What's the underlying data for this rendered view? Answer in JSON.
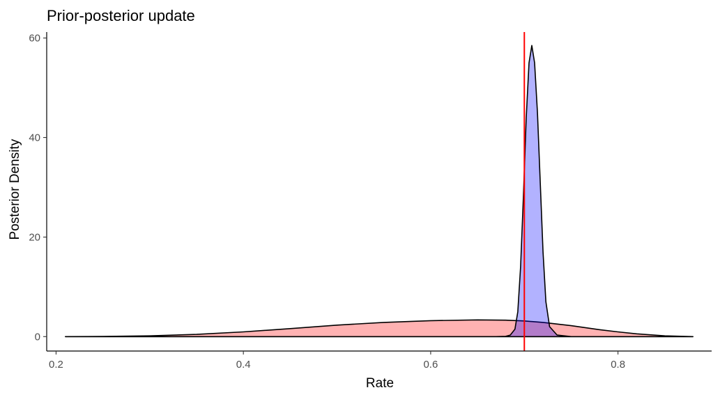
{
  "chart_data": {
    "type": "area",
    "title": "Prior-posterior update",
    "xlabel": "Rate",
    "ylabel": "Posterior Density",
    "xlim": [
      0.19,
      0.9
    ],
    "ylim": [
      -2.9,
      61.2
    ],
    "xticks": [
      0.2,
      0.4,
      0.6,
      0.8
    ],
    "xtick_labels": [
      "0.2",
      "0.4",
      "0.6",
      "0.8"
    ],
    "yticks": [
      0,
      20,
      40,
      60
    ],
    "ytick_labels": [
      "0",
      "20",
      "40",
      "60"
    ],
    "grid": false,
    "reference_line": {
      "x": 0.7,
      "color": "#ff0000"
    },
    "series": [
      {
        "fill": "#ff0000",
        "fill_opacity": 0.3,
        "x": [
          0.21,
          0.25,
          0.3,
          0.35,
          0.4,
          0.45,
          0.5,
          0.55,
          0.6,
          0.65,
          0.68,
          0.7,
          0.72,
          0.75,
          0.78,
          0.8,
          0.82,
          0.85,
          0.88
        ],
        "values": [
          0.0,
          0.03,
          0.15,
          0.45,
          0.95,
          1.6,
          2.3,
          2.85,
          3.2,
          3.35,
          3.3,
          3.15,
          2.85,
          2.2,
          1.4,
          0.95,
          0.55,
          0.15,
          0.0
        ]
      },
      {
        "fill": "#0000ff",
        "fill_opacity": 0.3,
        "x": [
          0.21,
          0.67,
          0.68,
          0.685,
          0.69,
          0.693,
          0.696,
          0.699,
          0.702,
          0.705,
          0.708,
          0.711,
          0.714,
          0.717,
          0.72,
          0.723,
          0.727,
          0.735,
          0.75,
          0.88
        ],
        "values": [
          0.0,
          0.0,
          0.05,
          0.3,
          1.5,
          5.0,
          14.0,
          28.0,
          44.0,
          55.0,
          58.5,
          55.0,
          45.0,
          31.0,
          17.0,
          7.0,
          2.0,
          0.3,
          0.0,
          0.0
        ]
      }
    ]
  }
}
